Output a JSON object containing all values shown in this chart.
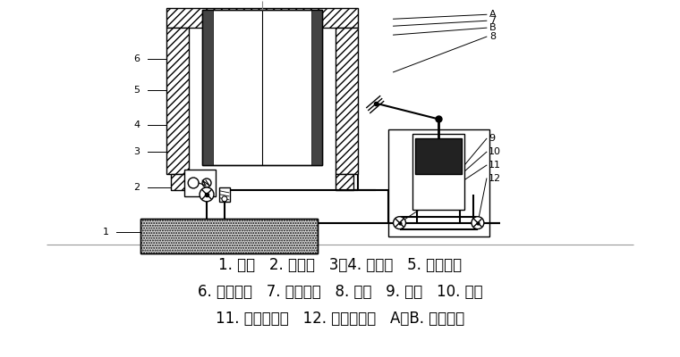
{
  "bg_color": "#ffffff",
  "line_color": "#000000",
  "labels": {
    "line1": "1. 油箱   2. 截止阀   3、4. 单向阀   5. 大缸缸筒",
    "line2": "6. 大缸柱塞   7. 小缸柱塞   8. 压杆   9. 活塞   10. 泵缸",
    "line3": "11. 压油单向阀   12. 吸油单向阀   A、B. 工作油腔"
  },
  "label_fontsize": 12,
  "figsize": [
    7.6,
    4.0
  ],
  "dpi": 100
}
